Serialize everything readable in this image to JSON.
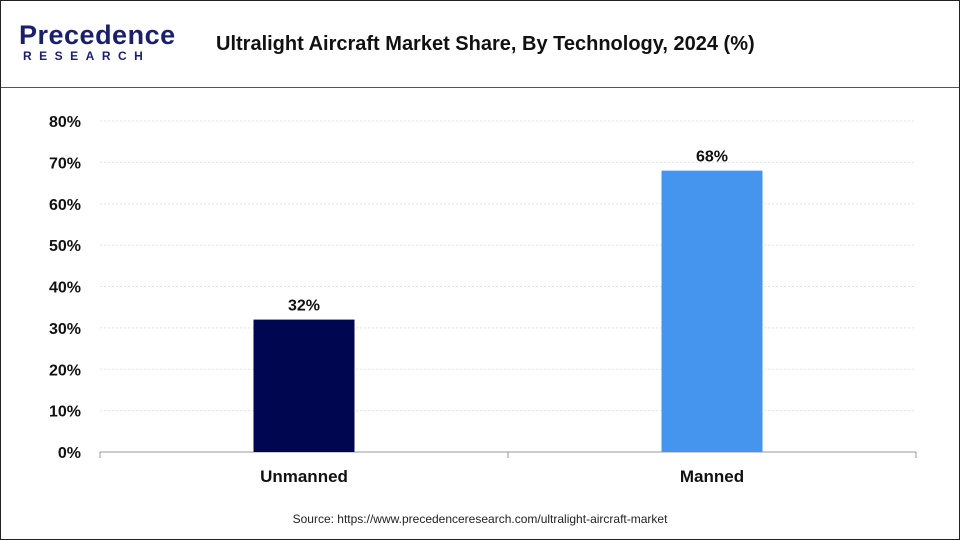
{
  "header": {
    "logo_text": "Precedence",
    "logo_subtext": "RESEARCH",
    "title": "Ultralight Aircraft Market Share, By Technology, 2024 (%)"
  },
  "chart_data": {
    "type": "bar",
    "title": "Ultralight Aircraft Market Share, By Technology, 2024 (%)",
    "categories": [
      "Unmanned",
      "Manned"
    ],
    "values": [
      32,
      68
    ],
    "data_labels": [
      "32%",
      "68%"
    ],
    "colors": [
      "#000650",
      "#4594ed"
    ],
    "ylim": [
      0,
      80
    ],
    "yticks": [
      "0%",
      "10%",
      "20%",
      "30%",
      "40%",
      "50%",
      "60%",
      "70%",
      "80%"
    ],
    "grid": true,
    "xlabel": "",
    "ylabel": ""
  },
  "source": "Source: https://www.precedenceresearch.com/ultralight-aircraft-market"
}
